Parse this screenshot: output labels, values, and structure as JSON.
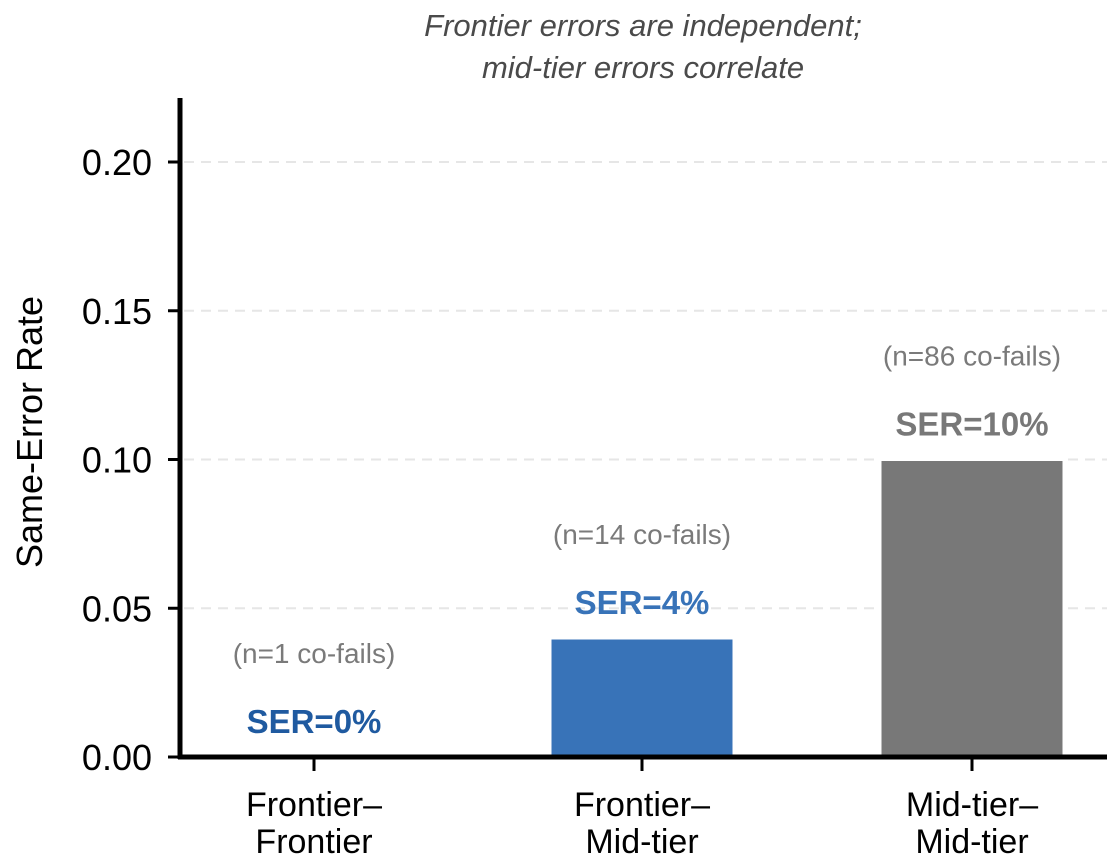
{
  "chart_data": {
    "type": "bar",
    "title": [
      "Frontier errors are independent;",
      "mid-tier errors correlate"
    ],
    "xlabel": "",
    "ylabel": "Same-Error Rate",
    "ylim": [
      0,
      0.22
    ],
    "yticks": [
      "0.00",
      "0.05",
      "0.10",
      "0.15",
      "0.20"
    ],
    "ytick_values": [
      0,
      0.05,
      0.1,
      0.15,
      0.2
    ],
    "grid": "y-dashed",
    "categories": [
      [
        "Frontier–",
        "Frontier"
      ],
      [
        "Frontier–",
        "Mid-tier"
      ],
      [
        "Mid-tier–",
        "Mid-tier"
      ]
    ],
    "values": [
      0.0,
      0.04,
      0.1
    ],
    "value_labels": [
      "SER=0%",
      "SER=4%",
      "SER=10%"
    ],
    "count_labels": [
      "(n=1 co-fails)",
      "(n=14 co-fails)",
      "(n=86 co-fails)"
    ],
    "bar_colors": [
      "#1f5aa0",
      "#3873b8",
      "#787878"
    ],
    "label_colors": [
      "#1f5aa0",
      "#3873b8",
      "#787878"
    ]
  }
}
